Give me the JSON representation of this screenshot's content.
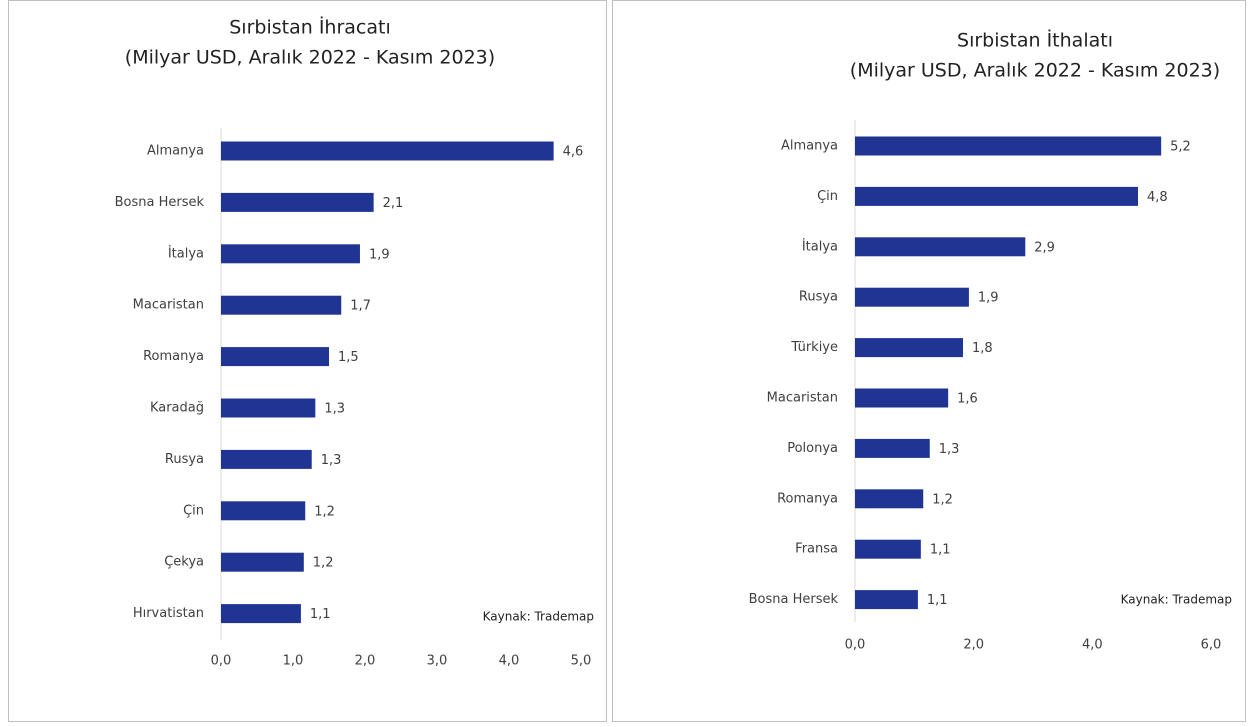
{
  "chart_data": [
    {
      "type": "barh",
      "title": "Sırbistan İhracatı",
      "subtitle": "(Milyar USD, Aralık 2022 - Kasım 2023)",
      "categories": [
        "Almanya",
        "Bosna Hersek",
        "İtalya",
        "Macaristan",
        "Romanya",
        "Karadağ",
        "Rusya",
        "Çin",
        "Çekya",
        "Hırvatistan"
      ],
      "values": [
        4.62,
        2.12,
        1.93,
        1.67,
        1.5,
        1.31,
        1.26,
        1.17,
        1.15,
        1.11
      ],
      "value_labels": [
        "4,6",
        "2,1",
        "1,9",
        "1,7",
        "1,5",
        "1,3",
        "1,3",
        "1,2",
        "1,2",
        "1,1"
      ],
      "color": "#203593",
      "xlim": [
        0,
        5
      ],
      "xticks": [
        {
          "value": 0,
          "label": "0,0"
        },
        {
          "value": 1,
          "label": "1,0"
        },
        {
          "value": 2,
          "label": "2,0"
        },
        {
          "value": 3,
          "label": "3,0"
        },
        {
          "value": 4,
          "label": "4,0"
        },
        {
          "value": 5,
          "label": "5,0"
        }
      ],
      "annotation": "Kaynak: Trademap"
    },
    {
      "type": "barh",
      "title": "Sırbistan İthalatı",
      "subtitle": "(Milyar USD, Aralık 2022 - Kasım 2023)",
      "categories": [
        "Almanya",
        "Çin",
        "İtalya",
        "Rusya",
        "Türkiye",
        "Macaristan",
        "Polonya",
        "Romanya",
        "Fransa",
        "Bosna Hersek"
      ],
      "values": [
        5.16,
        4.77,
        2.87,
        1.92,
        1.82,
        1.57,
        1.26,
        1.15,
        1.11,
        1.06
      ],
      "value_labels": [
        "5,2",
        "4,8",
        "2,9",
        "1,9",
        "1,8",
        "1,6",
        "1,3",
        "1,2",
        "1,1",
        "1,1"
      ],
      "color": "#203593",
      "xlim": [
        0,
        6
      ],
      "xticks": [
        {
          "value": 0,
          "label": "0,0"
        },
        {
          "value": 2,
          "label": "2,0"
        },
        {
          "value": 4,
          "label": "4,0"
        },
        {
          "value": 6,
          "label": "6,0"
        }
      ],
      "annotation": "Kaynak: Trademap"
    }
  ]
}
